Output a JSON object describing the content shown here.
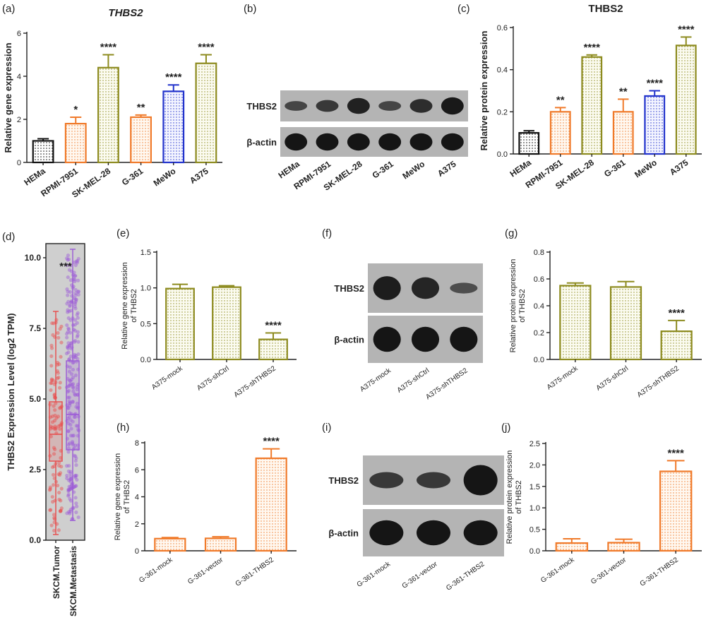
{
  "colors": {
    "black": "#111111",
    "orange": "#f07a2a",
    "olive": "#8d8b1f",
    "blue": "#2233cc",
    "red": "#e84a4a",
    "purple": "#9b59d6",
    "gray_bg": "#cfcfcf"
  },
  "panels": {
    "a": {
      "letter": "(a)"
    },
    "b": {
      "letter": "(b)"
    },
    "c": {
      "letter": "(c)"
    },
    "d": {
      "letter": "(d)"
    },
    "e": {
      "letter": "(e)"
    },
    "f": {
      "letter": "(f)"
    },
    "g": {
      "letter": "(g)"
    },
    "h": {
      "letter": "(h)"
    },
    "i": {
      "letter": "(i)"
    },
    "j": {
      "letter": "(j)"
    }
  },
  "blots": {
    "b": {
      "band_labels": [
        "THBS2",
        "β-actin"
      ],
      "lanes": [
        "HEMa",
        "RPMI-7951",
        "SK-MEL-28",
        "G-361",
        "MeWo",
        "A375"
      ]
    },
    "f": {
      "band_labels": [
        "THBS2",
        "β-actin"
      ],
      "lanes": [
        "A375-mock",
        "A375-shCtrl",
        "A375-shTHBS2"
      ]
    },
    "i": {
      "band_labels": [
        "THBS2",
        "β-actin"
      ],
      "lanes": [
        "G-361-mock",
        "G-361-vector",
        "G-361-THBS2"
      ]
    }
  },
  "chart_data": [
    {
      "id": "a",
      "type": "bar",
      "title": "THBS2",
      "ylabel": "Relative gene expression",
      "categories": [
        "HEMa",
        "RPMI-7951",
        "SK-MEL-28",
        "G-361",
        "MeWo",
        "A375"
      ],
      "values": [
        1.0,
        1.8,
        4.4,
        2.1,
        3.3,
        4.6
      ],
      "errors": [
        0.1,
        0.3,
        0.6,
        0.1,
        0.3,
        0.4
      ],
      "colors": [
        "black",
        "orange",
        "olive",
        "orange",
        "blue",
        "olive"
      ],
      "significance": [
        "",
        "*",
        "****",
        "**",
        "****",
        "****"
      ],
      "ylim": [
        0,
        6
      ],
      "yticks": [
        0,
        2,
        4,
        6
      ]
    },
    {
      "id": "c",
      "type": "bar",
      "title": "THBS2",
      "ylabel": "Relative protein expression",
      "categories": [
        "HEMa",
        "RPMI-7951",
        "SK-MEL-28",
        "G-361",
        "MeWo",
        "A375"
      ],
      "values": [
        0.1,
        0.2,
        0.46,
        0.2,
        0.275,
        0.515
      ],
      "errors": [
        0.01,
        0.02,
        0.01,
        0.06,
        0.025,
        0.04
      ],
      "colors": [
        "black",
        "orange",
        "olive",
        "orange",
        "blue",
        "olive"
      ],
      "significance": [
        "",
        "**",
        "****",
        "**",
        "****",
        "****"
      ],
      "ylim": [
        0,
        0.6
      ],
      "yticks": [
        0.0,
        0.2,
        0.4,
        0.6
      ]
    },
    {
      "id": "d",
      "type": "box",
      "ylabel": "THBS2 Expression Level (log2 TPM)",
      "categories": [
        "SKCM.Tumor",
        "SKCM.Metastasis"
      ],
      "boxes": [
        {
          "min": 0.2,
          "q1": 2.8,
          "median": 3.75,
          "q3": 4.9,
          "max": 8.1
        },
        {
          "min": 0.7,
          "q1": 3.2,
          "median": 4.45,
          "q3": 6.35,
          "max": 10.3
        }
      ],
      "colors": [
        "red",
        "purple"
      ],
      "significance": "***",
      "ylim": [
        0,
        10.5
      ],
      "yticks": [
        0.0,
        2.5,
        5.0,
        7.5,
        10.0
      ]
    },
    {
      "id": "e",
      "type": "bar",
      "ylabel": "Relative gene expression",
      "ylabel2": "of THBS2",
      "categories": [
        "A375-mock",
        "A375-shCtrl",
        "A375-shTHBS2"
      ],
      "values": [
        0.99,
        1.01,
        0.28
      ],
      "errors": [
        0.06,
        0.02,
        0.09
      ],
      "colors": [
        "olive",
        "olive",
        "olive"
      ],
      "significance": [
        "",
        "",
        "****"
      ],
      "ylim": [
        0,
        1.5
      ],
      "yticks": [
        0.0,
        0.5,
        1.0,
        1.5
      ]
    },
    {
      "id": "g",
      "type": "bar",
      "ylabel": "Relative protein expression",
      "ylabel2": "of THBS2",
      "categories": [
        "A375-mock",
        "A375-shCtrl",
        "A375-shTHBS2"
      ],
      "values": [
        0.55,
        0.54,
        0.21
      ],
      "errors": [
        0.02,
        0.04,
        0.08
      ],
      "colors": [
        "olive",
        "olive",
        "olive"
      ],
      "significance": [
        "",
        "",
        "****"
      ],
      "ylim": [
        0,
        0.8
      ],
      "yticks": [
        0.0,
        0.2,
        0.4,
        0.6,
        0.8
      ]
    },
    {
      "id": "h",
      "type": "bar",
      "ylabel": "Relative gene expression",
      "ylabel2": "of THBS2",
      "categories": [
        "G-361-mock",
        "G-361-vector",
        "G-361-THBS2"
      ],
      "values": [
        0.9,
        0.92,
        6.85
      ],
      "errors": [
        0.08,
        0.12,
        0.7
      ],
      "colors": [
        "orange",
        "orange",
        "orange"
      ],
      "significance": [
        "",
        "",
        "****"
      ],
      "ylim": [
        0,
        8
      ],
      "yticks": [
        0,
        2,
        4,
        6,
        8
      ]
    },
    {
      "id": "j",
      "type": "bar",
      "ylabel": "Relative protein expression",
      "ylabel2": "of THBS2",
      "categories": [
        "G-361-mock",
        "G-361-vector",
        "G-361-THBS2"
      ],
      "values": [
        0.18,
        0.19,
        1.85
      ],
      "errors": [
        0.1,
        0.08,
        0.25
      ],
      "colors": [
        "orange",
        "orange",
        "orange"
      ],
      "significance": [
        "",
        "",
        "****"
      ],
      "ylim": [
        0,
        2.5
      ],
      "yticks": [
        0.0,
        0.5,
        1.0,
        1.5,
        2.0,
        2.5
      ]
    }
  ]
}
